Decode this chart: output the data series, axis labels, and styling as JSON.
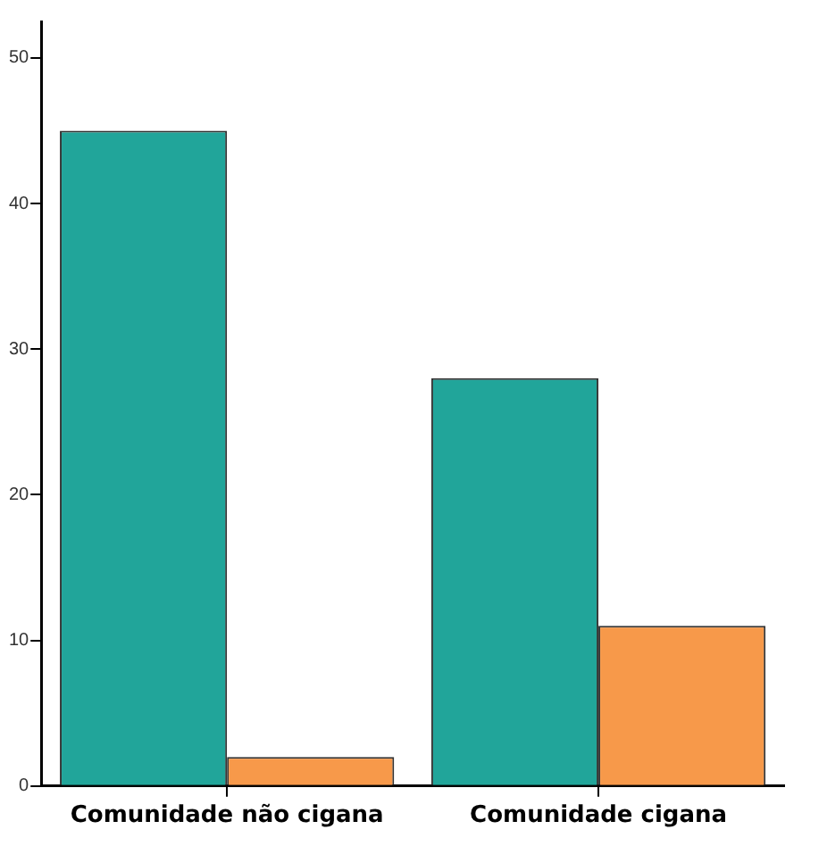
{
  "chart_data": {
    "type": "bar",
    "categories": [
      "Comunidade não cigana",
      "Comunidade cigana"
    ],
    "series": [
      {
        "color": "#21a59a",
        "values": [
          45,
          28
        ]
      },
      {
        "color": "#f7994a",
        "values": [
          2,
          11
        ]
      }
    ],
    "ylim": [
      0,
      52.5
    ],
    "yticks": [
      0,
      10,
      20,
      30,
      40,
      50
    ],
    "grid": false,
    "legend": false
  }
}
